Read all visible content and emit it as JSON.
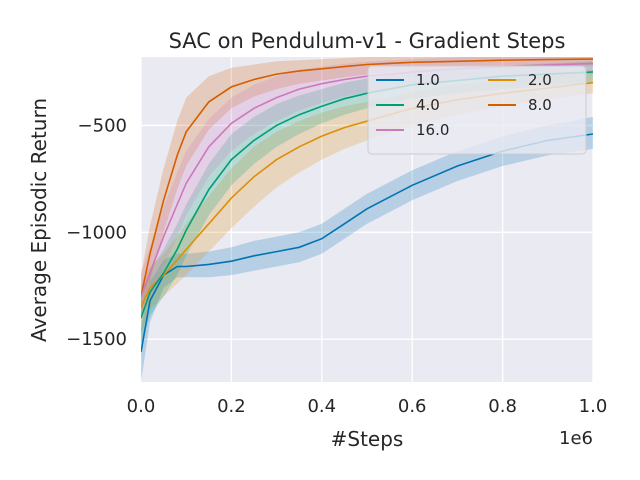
{
  "chart_data": {
    "type": "line",
    "title": "SAC on Pendulum-v1 - Gradient Steps",
    "xlabel": "#Steps",
    "ylabel": "Average Episodic Return",
    "x_offset_label": "1e6",
    "xlim": [
      0.0,
      1.0
    ],
    "ylim": [
      -1700,
      -180
    ],
    "xticks": [
      0.0,
      0.2,
      0.4,
      0.6,
      0.8,
      1.0
    ],
    "xtick_labels": [
      "0.0",
      "0.2",
      "0.4",
      "0.6",
      "0.8",
      "1.0"
    ],
    "yticks": [
      -1500,
      -1000,
      -500
    ],
    "ytick_labels": [
      "−1500",
      "−1000",
      "−500"
    ],
    "grid": true,
    "legend_position": "top-right",
    "legend_columns": 2,
    "x": [
      0.0,
      0.02,
      0.05,
      0.08,
      0.1,
      0.15,
      0.2,
      0.25,
      0.3,
      0.35,
      0.4,
      0.45,
      0.5,
      0.6,
      0.7,
      0.8,
      0.9,
      1.0
    ],
    "series": [
      {
        "name": "1.0",
        "color": "#0173b2",
        "values": [
          -1560,
          -1320,
          -1200,
          -1160,
          -1160,
          -1150,
          -1135,
          -1110,
          -1090,
          -1070,
          -1030,
          -960,
          -890,
          -780,
          -690,
          -620,
          -570,
          -540
        ],
        "lower": [
          -1700,
          -1420,
          -1260,
          -1210,
          -1210,
          -1210,
          -1200,
          -1180,
          -1160,
          -1140,
          -1100,
          -1030,
          -960,
          -850,
          -760,
          -690,
          -640,
          -610
        ],
        "upper": [
          -1450,
          -1230,
          -1130,
          -1100,
          -1100,
          -1090,
          -1070,
          -1040,
          -1020,
          -1000,
          -960,
          -890,
          -820,
          -710,
          -620,
          -550,
          -500,
          -460
        ]
      },
      {
        "name": "2.0",
        "color": "#de8f05",
        "values": [
          -1350,
          -1260,
          -1200,
          -1130,
          -1080,
          -960,
          -840,
          -740,
          -660,
          -600,
          -550,
          -510,
          -480,
          -420,
          -380,
          -350,
          -325,
          -300
        ],
        "lower": [
          -1470,
          -1360,
          -1300,
          -1240,
          -1200,
          -1090,
          -980,
          -880,
          -790,
          -720,
          -660,
          -610,
          -570,
          -500,
          -450,
          -410,
          -380,
          -350
        ],
        "upper": [
          -1240,
          -1160,
          -1100,
          -1020,
          -960,
          -830,
          -700,
          -600,
          -530,
          -480,
          -440,
          -410,
          -390,
          -345,
          -310,
          -290,
          -265,
          -240
        ]
      },
      {
        "name": "4.0",
        "color": "#029e73",
        "values": [
          -1400,
          -1280,
          -1190,
          -1080,
          -990,
          -800,
          -660,
          -570,
          -500,
          -450,
          -410,
          -375,
          -350,
          -310,
          -290,
          -270,
          -260,
          -250
        ],
        "lower": [
          -1520,
          -1390,
          -1300,
          -1200,
          -1110,
          -920,
          -780,
          -680,
          -600,
          -540,
          -490,
          -450,
          -420,
          -375,
          -350,
          -330,
          -315,
          -300
        ],
        "upper": [
          -1290,
          -1180,
          -1080,
          -960,
          -870,
          -680,
          -540,
          -460,
          -400,
          -360,
          -330,
          -300,
          -280,
          -250,
          -235,
          -220,
          -210,
          -200
        ]
      },
      {
        "name": "8.0",
        "color": "#d55e00",
        "values": [
          -1300,
          -1100,
          -850,
          -640,
          -530,
          -390,
          -320,
          -285,
          -260,
          -245,
          -235,
          -225,
          -215,
          -205,
          -200,
          -195,
          -192,
          -190
        ],
        "lower": [
          -1400,
          -1230,
          -1000,
          -800,
          -690,
          -520,
          -420,
          -365,
          -330,
          -305,
          -290,
          -275,
          -262,
          -245,
          -235,
          -228,
          -224,
          -220
        ],
        "upper": [
          -1200,
          -970,
          -700,
          -480,
          -370,
          -270,
          -230,
          -215,
          -200,
          -195,
          -190,
          -185,
          -180,
          -175,
          -172,
          -170,
          -168,
          -166
        ]
      },
      {
        "name": "16.0",
        "color": "#cc78bc",
        "values": [
          -1300,
          -1190,
          -1020,
          -870,
          -770,
          -600,
          -490,
          -420,
          -370,
          -330,
          -305,
          -285,
          -270,
          -250,
          -235,
          -225,
          -218,
          -210
        ],
        "lower": [
          -1400,
          -1310,
          -1160,
          -1020,
          -920,
          -740,
          -620,
          -540,
          -480,
          -430,
          -395,
          -365,
          -345,
          -315,
          -295,
          -280,
          -270,
          -260
        ],
        "upper": [
          -1190,
          -1070,
          -880,
          -720,
          -620,
          -470,
          -370,
          -310,
          -270,
          -240,
          -225,
          -212,
          -202,
          -190,
          -182,
          -176,
          -171,
          -166
        ]
      }
    ]
  }
}
